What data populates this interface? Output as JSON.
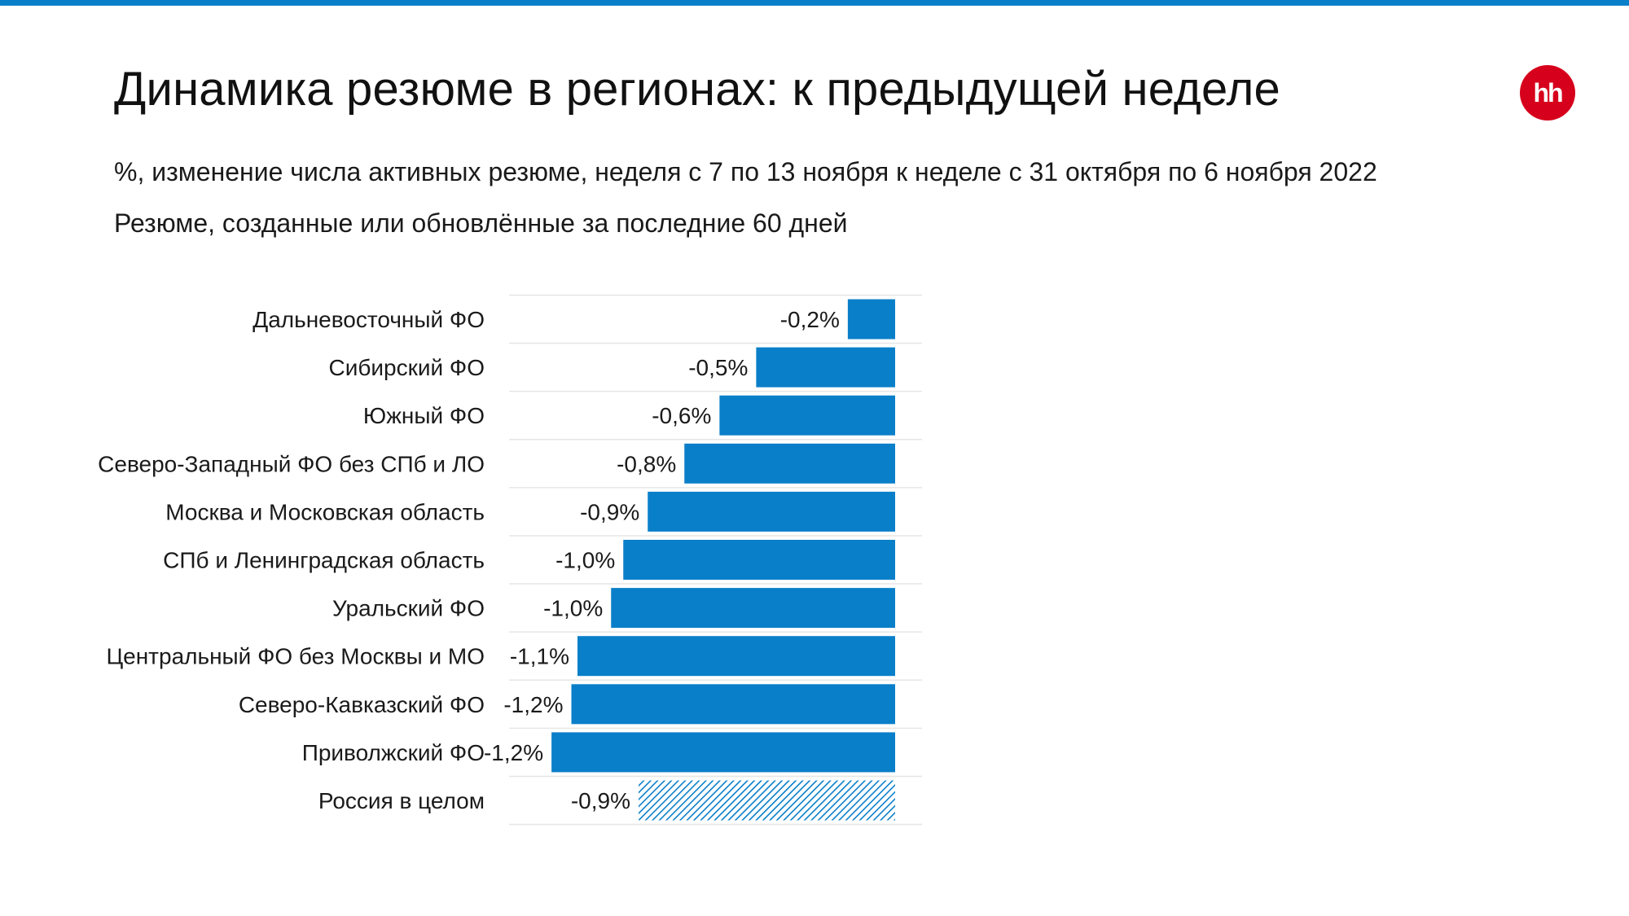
{
  "title": "Динамика резюме в регионах: к предыдущей неделе",
  "subtitle": "%, изменение числа активных резюме, неделя с 7 по 13 ноября к неделе с 31 октября по 6 ноября 2022",
  "note": "Резюме, созданные или обновлённые за последние 60 дней",
  "logo_text": "hh",
  "colors": {
    "bar": "#0a7fc9",
    "total_hatch": "#0a7fc9",
    "accent_rule": "#0a7fc9",
    "logo": "#d6001c",
    "grid": "#e6e6e6"
  },
  "chart_data": {
    "type": "bar",
    "orientation": "horizontal",
    "title": "",
    "xlabel": "",
    "ylabel": "",
    "xlim": [
      -1.25,
      0
    ],
    "grid": false,
    "categories": [
      "Дальневосточный ФО",
      "Сибирский ФО",
      "Южный ФО",
      "Северо-Западный ФО без СПб и ЛО",
      "Москва и Московская область",
      "СПб и Ленинградская область",
      "Уральский ФО",
      "Центральный ФО без Москвы и МО",
      "Северо-Кавказский ФО",
      "Приволжский ФО",
      "Россия в целом"
    ],
    "values": [
      -0.2,
      -0.5,
      -0.6,
      -0.8,
      -0.9,
      -1.0,
      -1.0,
      -1.1,
      -1.2,
      -1.2,
      -0.9
    ],
    "bar_extents": [
      -0.155,
      -0.455,
      -0.575,
      -0.69,
      -0.81,
      -0.89,
      -0.93,
      -1.04,
      -1.06,
      -1.125,
      -0.84
    ],
    "value_labels": [
      "-0,2%",
      "-0,5%",
      "-0,6%",
      "-0,8%",
      "-0,9%",
      "-1,0%",
      "-1,0%",
      "-1,1%",
      "-1,2%",
      "-1,2%",
      "-0,9%"
    ],
    "highlight": {
      "index": 10,
      "style": "hatched"
    }
  }
}
